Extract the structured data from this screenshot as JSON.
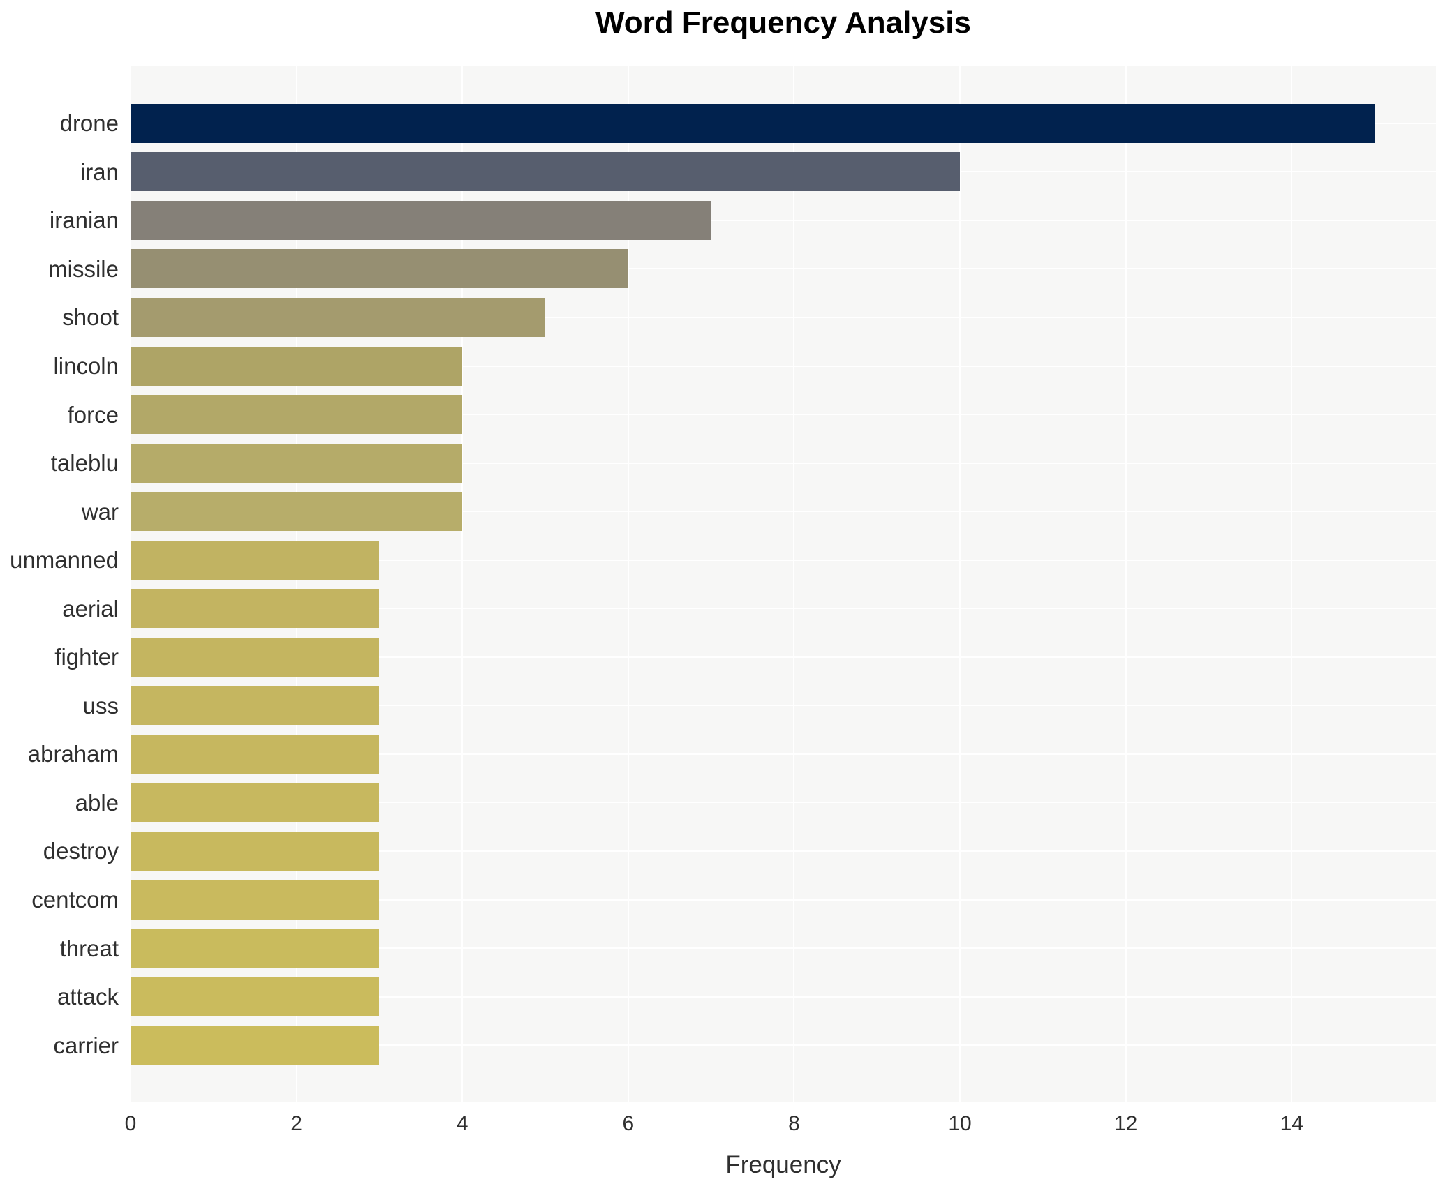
{
  "chart_data": {
    "type": "bar",
    "orientation": "horizontal",
    "title": "Word Frequency Analysis",
    "xlabel": "Frequency",
    "ylabel": "",
    "categories": [
      "drone",
      "iran",
      "iranian",
      "missile",
      "shoot",
      "lincoln",
      "force",
      "taleblu",
      "war",
      "unmanned",
      "aerial",
      "fighter",
      "uss",
      "abraham",
      "able",
      "destroy",
      "centcom",
      "threat",
      "attack",
      "carrier"
    ],
    "values": [
      15,
      10,
      7,
      6,
      5,
      4,
      4,
      4,
      4,
      3,
      3,
      3,
      3,
      3,
      3,
      3,
      3,
      3,
      3,
      3
    ],
    "bar_colors": [
      "#01224e",
      "#575e6e",
      "#858078",
      "#968f72",
      "#a49b6e",
      "#aea466",
      "#b2a868",
      "#b5ab69",
      "#b7ad6a",
      "#c1b362",
      "#c3b461",
      "#c4b560",
      "#c5b660",
      "#c6b75f",
      "#c7b85f",
      "#c8b95e",
      "#c9ba5e",
      "#c9bb5d",
      "#cabb5d",
      "#cbbc5c"
    ],
    "x_ticks": [
      0,
      2,
      4,
      6,
      8,
      10,
      12,
      14
    ],
    "xlim": [
      0,
      15.74
    ],
    "legend": false,
    "grid": "on",
    "plot_background": "#f7f7f6",
    "gridline_color": "#ffffff",
    "text_color": "#2f2f2f",
    "title_color": "#000000"
  }
}
